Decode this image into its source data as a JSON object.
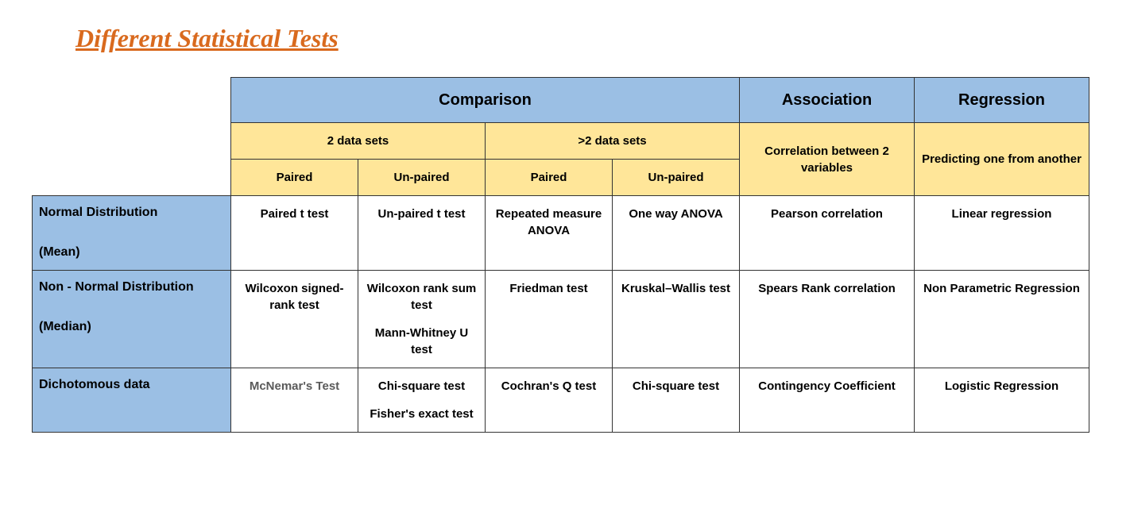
{
  "title": "Different Statistical Tests",
  "colors": {
    "title_color": "#d96a1e",
    "blue_header_bg": "#9bbfe4",
    "yellow_header_bg": "#ffe699",
    "row_label_bg": "#9bbfe4",
    "border_color": "#333333",
    "text_color": "#000000",
    "grey_text": "#5a5a5a"
  },
  "headers": {
    "comparison": "Comparison",
    "association": "Association",
    "regression": "Regression",
    "two_sets": "2 data sets",
    "gt_two_sets": ">2 data sets",
    "corr_desc": "Correlation between 2 variables",
    "pred_desc": "Predicting one from another",
    "paired": "Paired",
    "unpaired": "Un-paired"
  },
  "rows": [
    {
      "label_main": "Normal Distribution",
      "label_sub": "(Mean)",
      "cells": [
        [
          "Paired t test"
        ],
        [
          "Un-paired t test"
        ],
        [
          "Repeated measure ANOVA"
        ],
        [
          "One way ANOVA"
        ],
        [
          "Pearson correlation"
        ],
        [
          "Linear regression"
        ]
      ],
      "grey_first": false
    },
    {
      "label_main": "Non - Normal Distribution",
      "label_sub": "(Median)",
      "cells": [
        [
          "Wilcoxon signed-rank test"
        ],
        [
          "Wilcoxon rank sum test",
          "Mann-Whitney U test"
        ],
        [
          "Friedman test"
        ],
        [
          "Kruskal–Wallis test"
        ],
        [
          "Spears Rank correlation"
        ],
        [
          "Non Parametric Regression"
        ]
      ],
      "grey_first": false
    },
    {
      "label_main": "Dichotomous data",
      "label_sub": "",
      "cells": [
        [
          "McNemar's Test"
        ],
        [
          "Chi-square test",
          "Fisher's exact test"
        ],
        [
          "Cochran's Q test"
        ],
        [
          "Chi-square test"
        ],
        [
          "Contingency Coefficient"
        ],
        [
          "Logistic Regression"
        ]
      ],
      "grey_first": true
    }
  ]
}
